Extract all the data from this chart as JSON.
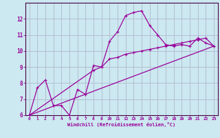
{
  "xlabel": "Windchill (Refroidissement éolien,°C)",
  "bg_color": "#cce8f0",
  "line_color": "#990099",
  "grid_color": "#b0b8d0",
  "xlim": [
    -0.5,
    23.5
  ],
  "ylim": [
    6,
    13
  ],
  "xticks": [
    0,
    1,
    2,
    3,
    4,
    5,
    6,
    7,
    8,
    9,
    10,
    11,
    12,
    13,
    14,
    15,
    16,
    17,
    18,
    19,
    20,
    21,
    22,
    23
  ],
  "yticks": [
    6,
    7,
    8,
    9,
    10,
    11,
    12
  ],
  "curve1_x": [
    0,
    1,
    2,
    3,
    4,
    5,
    6,
    7,
    8,
    9,
    10,
    11,
    12,
    13,
    14,
    15,
    16,
    17,
    18,
    19,
    20,
    21,
    22,
    23
  ],
  "curve1_y": [
    6.0,
    7.7,
    8.2,
    6.6,
    6.6,
    6.0,
    7.6,
    7.3,
    9.1,
    9.0,
    10.6,
    11.2,
    12.2,
    12.4,
    12.5,
    11.6,
    11.0,
    10.4,
    10.3,
    10.4,
    10.3,
    10.8,
    10.5,
    10.3
  ],
  "curve2_x": [
    0,
    8,
    9,
    10,
    11,
    12,
    13,
    14,
    15,
    16,
    17,
    18,
    19,
    20,
    21,
    22,
    23
  ],
  "curve2_y": [
    6.0,
    8.8,
    9.0,
    9.5,
    9.6,
    9.8,
    9.9,
    10.0,
    10.1,
    10.2,
    10.3,
    10.4,
    10.5,
    10.6,
    10.7,
    10.8,
    10.3
  ],
  "curve3_x": [
    0,
    23
  ],
  "curve3_y": [
    6.0,
    10.3
  ]
}
